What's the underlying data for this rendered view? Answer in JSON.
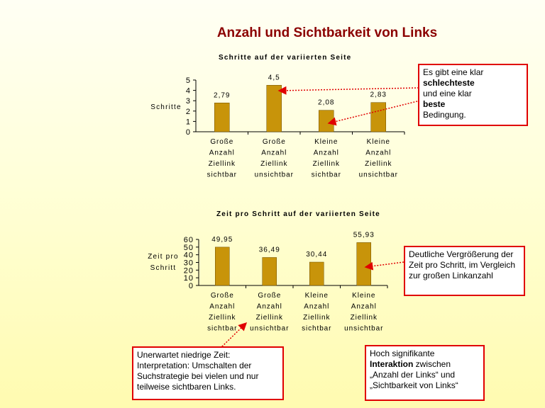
{
  "slide": {
    "title": "Anzahl und Sichtbarkeit von Links"
  },
  "chart_data": [
    {
      "type": "bar",
      "title": "Schritte auf der variierten Seite",
      "ylabel": "Schritte",
      "categories": [
        [
          "Große",
          "Anzahl",
          "Ziellink",
          "sichtbar"
        ],
        [
          "Große",
          "Anzahl",
          "Ziellink",
          "unsichtbar"
        ],
        [
          "Kleine",
          "Anzahl",
          "Ziellink",
          "sichtbar"
        ],
        [
          "Kleine",
          "Anzahl",
          "Ziellink",
          "unsichtbar"
        ]
      ],
      "values": [
        2.79,
        4.5,
        2.08,
        2.83
      ],
      "value_labels": [
        "2,79",
        "4,5",
        "2,08",
        "2,83"
      ],
      "ylim": [
        0,
        5
      ],
      "yticks": [
        0,
        1,
        2,
        3,
        4,
        5
      ],
      "bar_color": "#c8940a",
      "grid": false
    },
    {
      "type": "bar",
      "title": "Zeit pro Schritt auf der variierten Seite",
      "ylabel": [
        "Zeit pro",
        "Schritt"
      ],
      "categories": [
        [
          "Große",
          "Anzahl",
          "Ziellink",
          "sichtbar"
        ],
        [
          "Große",
          "Anzahl",
          "Ziellink",
          "unsichtbar"
        ],
        [
          "Kleine",
          "Anzahl",
          "Ziellink",
          "sichtbar"
        ],
        [
          "Kleine",
          "Anzahl",
          "Ziellink",
          "unsichtbar"
        ]
      ],
      "values": [
        49.95,
        36.49,
        30.44,
        55.93
      ],
      "value_labels": [
        "49,95",
        "36,49",
        "30,44",
        "55,93"
      ],
      "ylim": [
        0,
        60
      ],
      "yticks": [
        0,
        10,
        20,
        30,
        40,
        50,
        60
      ],
      "bar_color": "#c8940a",
      "grid": false
    }
  ],
  "callouts": {
    "c1": {
      "line1": "Es  gibt eine klar",
      "bold1": "schlechteste",
      "line2": "und eine klar",
      "bold2": "beste",
      "line3": "Bedingung."
    },
    "c2": {
      "text": "Deutliche Vergrößerung der Zeit pro Schritt, im Vergleich zur großen Linkanzahl"
    },
    "c3": {
      "text": "Unerwartet niedrige Zeit: Interpretation: Umschalten der Suchstrategie bei vielen und nur teilweise sichtbaren Links."
    },
    "c4": {
      "line1": "Hoch signifikante",
      "bold": "Interaktion",
      "line1b": " zwischen",
      "line2": "„Anzahl der Links“ und",
      "line3": "„Sichtbarkeit von Links“"
    }
  },
  "colors": {
    "title": "#8b0000",
    "callout_border": "#e00000",
    "arrow": "#e00000",
    "bar": "#c8940a"
  }
}
